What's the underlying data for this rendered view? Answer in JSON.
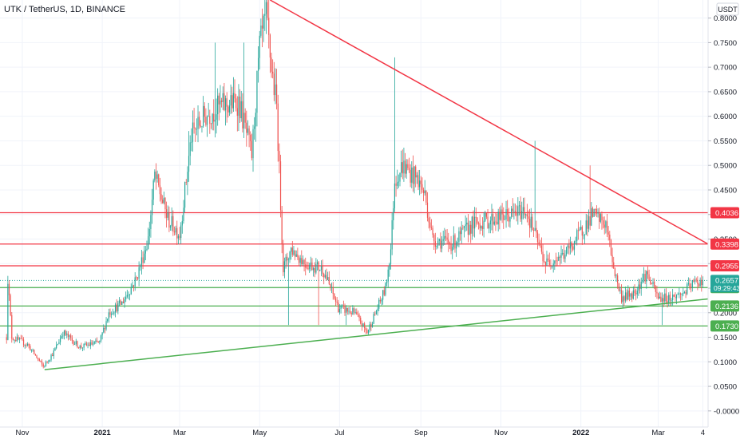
{
  "header": {
    "title": "UTK / TetherUS, 1D, BINANCE",
    "currency": "USDT"
  },
  "price_badges": {
    "current_price": "0.2657",
    "countdown": "09:29:43"
  },
  "colors": {
    "up": "#26a69a",
    "down": "#ef5350",
    "resistance": "#f23645",
    "support": "#4caf50",
    "current": "#26a69a",
    "grid": "#f0f3fa",
    "axis_text": "#131722"
  },
  "chart_data": {
    "type": "candlestick",
    "title": "UTK / TetherUS, 1D, BINANCE",
    "y_unit": "USDT",
    "ylim": [
      -0.0328,
      0.8368
    ],
    "y_ticks": [
      "0.8000",
      "0.7500",
      "0.7000",
      "0.6500",
      "0.6000",
      "0.5500",
      "0.5000",
      "0.4500",
      "0.4000",
      "0.3500",
      "0.3000",
      "0.2500",
      "0.2000",
      "0.1500",
      "0.1000",
      "0.0500",
      "-0.0000"
    ],
    "x_tick_labels": [
      {
        "label": "Nov",
        "bold": false
      },
      {
        "label": "2021",
        "bold": true
      },
      {
        "label": "Mar",
        "bold": false
      },
      {
        "label": "May",
        "bold": false
      },
      {
        "label": "Jul",
        "bold": false
      },
      {
        "label": "Sep",
        "bold": false
      },
      {
        "label": "Nov",
        "bold": false
      },
      {
        "label": "2022",
        "bold": true
      },
      {
        "label": "Mar",
        "bold": false
      },
      {
        "label": "4",
        "bold": false
      }
    ],
    "x_tick_dates": [
      "2020-11-01",
      "2021-01-01",
      "2021-03-01",
      "2021-05-01",
      "2021-07-01",
      "2021-09-01",
      "2021-11-01",
      "2022-01-01",
      "2022-03-01",
      "2022-04-04"
    ],
    "date_range": [
      "2020-10-15",
      "2022-04-08"
    ],
    "price_path": [
      [
        "2020-10-20",
        0.15
      ],
      [
        "2020-10-21",
        0.27
      ],
      [
        "2020-10-24",
        0.15
      ],
      [
        "2020-11-05",
        0.135
      ],
      [
        "2020-11-17",
        0.09
      ],
      [
        "2020-11-25",
        0.12
      ],
      [
        "2020-12-02",
        0.16
      ],
      [
        "2020-12-15",
        0.13
      ],
      [
        "2020-12-30",
        0.14
      ],
      [
        "2021-01-06",
        0.2
      ],
      [
        "2021-01-16",
        0.22
      ],
      [
        "2021-01-27",
        0.27
      ],
      [
        "2021-02-05",
        0.35
      ],
      [
        "2021-02-10",
        0.48
      ],
      [
        "2021-02-20",
        0.39
      ],
      [
        "2021-03-01",
        0.36
      ],
      [
        "2021-03-10",
        0.56
      ],
      [
        "2021-03-20",
        0.6
      ],
      [
        "2021-04-01",
        0.62
      ],
      [
        "2021-04-15",
        0.63
      ],
      [
        "2021-04-25",
        0.52
      ],
      [
        "2021-05-01",
        0.74
      ],
      [
        "2021-05-06",
        0.8
      ],
      [
        "2021-05-10",
        0.7
      ],
      [
        "2021-05-14",
        0.62
      ],
      [
        "2021-05-19",
        0.29
      ],
      [
        "2021-05-25",
        0.33
      ],
      [
        "2021-06-05",
        0.3
      ],
      [
        "2021-06-18",
        0.29
      ],
      [
        "2021-06-30",
        0.21
      ],
      [
        "2021-07-12",
        0.2
      ],
      [
        "2021-07-22",
        0.16
      ],
      [
        "2021-07-30",
        0.21
      ],
      [
        "2021-08-05",
        0.25
      ],
      [
        "2021-08-09",
        0.33
      ],
      [
        "2021-08-12",
        0.47
      ],
      [
        "2021-08-18",
        0.5
      ],
      [
        "2021-08-30",
        0.47
      ],
      [
        "2021-09-04",
        0.44
      ],
      [
        "2021-09-10",
        0.35
      ],
      [
        "2021-09-25",
        0.34
      ],
      [
        "2021-10-10",
        0.38
      ],
      [
        "2021-10-25",
        0.39
      ],
      [
        "2021-11-10",
        0.4
      ],
      [
        "2021-11-20",
        0.41
      ],
      [
        "2021-12-01",
        0.33
      ],
      [
        "2021-12-05",
        0.3
      ],
      [
        "2021-12-20",
        0.32
      ],
      [
        "2021-12-31",
        0.36
      ],
      [
        "2022-01-10",
        0.4
      ],
      [
        "2022-01-20",
        0.38
      ],
      [
        "2022-01-27",
        0.28
      ],
      [
        "2022-02-01",
        0.23
      ],
      [
        "2022-02-10",
        0.24
      ],
      [
        "2022-02-20",
        0.28
      ],
      [
        "2022-03-01",
        0.23
      ],
      [
        "2022-03-10",
        0.23
      ],
      [
        "2022-03-20",
        0.24
      ],
      [
        "2022-03-28",
        0.26
      ],
      [
        "2022-04-04",
        0.266
      ]
    ],
    "wick_spikes": [
      {
        "date": "2020-10-21",
        "high": 0.275
      },
      {
        "date": "2021-03-08",
        "high": 0.57
      },
      {
        "date": "2021-03-28",
        "high": 0.75
      },
      {
        "date": "2021-04-19",
        "high": 0.75
      },
      {
        "date": "2021-05-05",
        "high": 0.8368
      },
      {
        "date": "2021-05-08",
        "high": 0.8368
      },
      {
        "date": "2021-08-12",
        "high": 0.72
      },
      {
        "date": "2021-11-27",
        "high": 0.55
      },
      {
        "date": "2022-01-08",
        "high": 0.5
      }
    ],
    "wick_drops": [
      {
        "date": "2021-05-23",
        "low": 0.175
      },
      {
        "date": "2021-06-15",
        "low": 0.175
      },
      {
        "date": "2021-07-06",
        "low": 0.175
      },
      {
        "date": "2022-03-04",
        "low": 0.175
      }
    ],
    "horizontal_levels": [
      {
        "price": 0.4036,
        "label": "0.4036",
        "color": "#f23645",
        "kind": "resistance"
      },
      {
        "price": 0.3398,
        "label": "0.3398",
        "color": "#f23645",
        "kind": "resistance"
      },
      {
        "price": 0.2955,
        "label": "0.2955",
        "color": "#f23645",
        "kind": "resistance"
      },
      {
        "price": 0.2512,
        "label": "0.2512",
        "color": "#4caf50",
        "kind": "support"
      },
      {
        "price": 0.2136,
        "label": "0.2136",
        "color": "#4caf50",
        "kind": "support"
      },
      {
        "price": 0.173,
        "label": "0.1730",
        "color": "#4caf50",
        "kind": "support"
      }
    ],
    "current_price": 0.2657,
    "trendlines": [
      {
        "name": "descending",
        "color": "#f23645",
        "from": [
          "2021-05-09",
          0.8368
        ],
        "to": [
          "2022-04-08",
          0.3398
        ]
      },
      {
        "name": "ascending",
        "color": "#4caf50",
        "from": [
          "2020-11-18",
          0.084
        ],
        "to": [
          "2022-04-08",
          0.228
        ]
      }
    ],
    "grid": true
  }
}
